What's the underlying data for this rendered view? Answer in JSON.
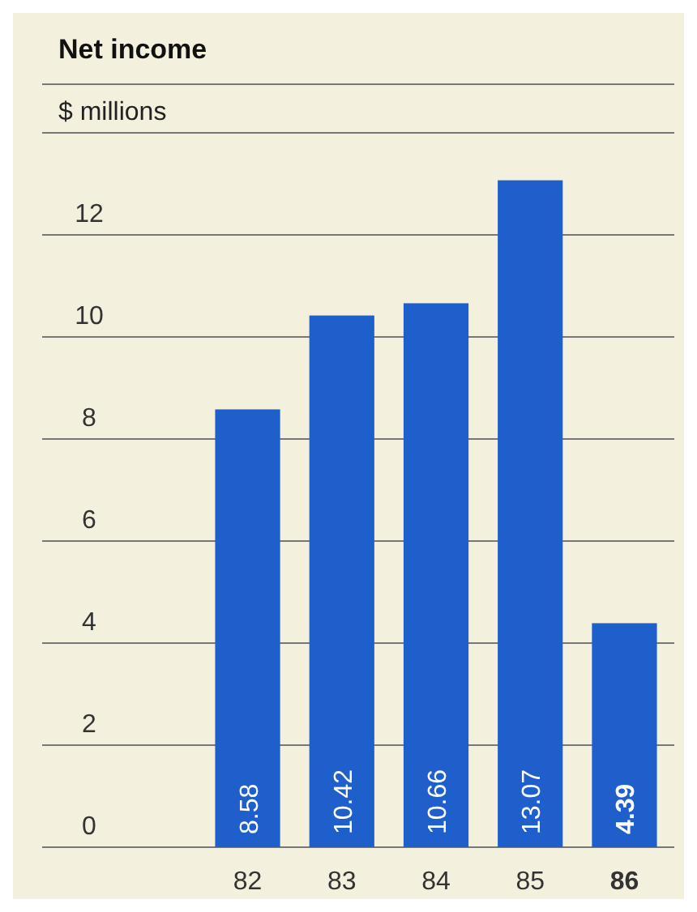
{
  "chart_data": {
    "type": "bar",
    "title": "Net income",
    "ylabel": "$ millions",
    "categories": [
      "82",
      "83",
      "84",
      "85",
      "86"
    ],
    "values": [
      8.58,
      10.42,
      10.66,
      13.07,
      4.39
    ],
    "color": "#1f5fcc",
    "ylim": [
      0,
      14
    ],
    "yticks": [
      0,
      2,
      4,
      6,
      8,
      10,
      12
    ],
    "grid": "y",
    "data_labels": true
  }
}
